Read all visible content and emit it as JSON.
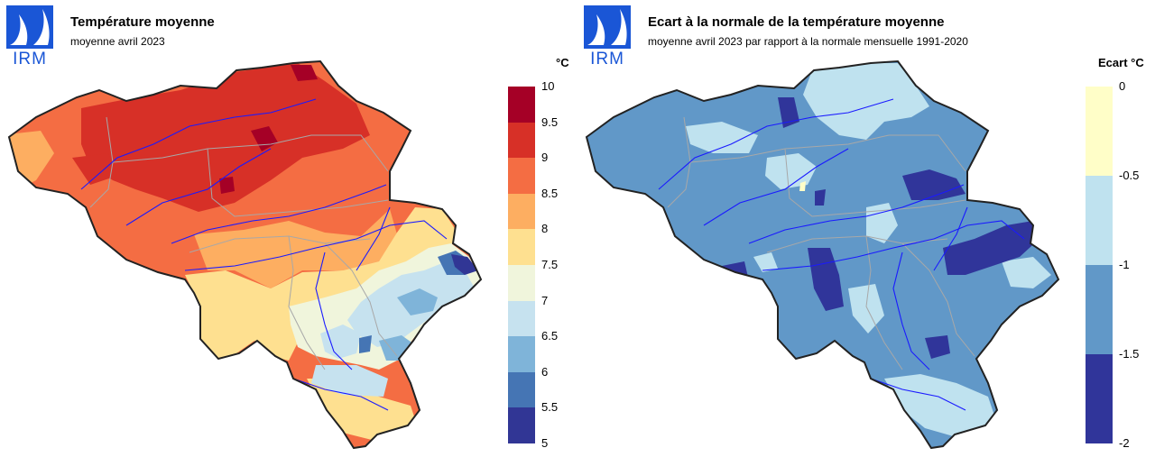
{
  "left_panel": {
    "logo_text": "IRM",
    "title": "Température moyenne",
    "subtitle": "moyenne avril 2023",
    "unit": "°C",
    "legend_ticks": [
      "10",
      "9.5",
      "9",
      "8.5",
      "8",
      "7.5",
      "7",
      "6.5",
      "6",
      "5.5",
      "5"
    ],
    "legend_colors": [
      "#a50026",
      "#d73027",
      "#f46d43",
      "#fdae61",
      "#fee090",
      "#f0f5dc",
      "#c6e2ef",
      "#7fb4d9",
      "#4575b4",
      "#313695"
    ],
    "map_colors": {
      "background": "#f46d43",
      "hot": "#d73027",
      "hottest": "#a50026",
      "warm": "#fdae61",
      "mild": "#fee090",
      "neutral": "#f0f5dc",
      "cool": "#c6e2ef",
      "cold": "#7fb4d9",
      "colder": "#4575b4",
      "coldest": "#313695"
    }
  },
  "right_panel": {
    "logo_text": "IRM",
    "title": "Ecart à la normale de la température moyenne",
    "subtitle": "moyenne avril 2023 par rapport à la normale mensuelle 1991-2020",
    "unit": "Ecart °C",
    "legend_ticks": [
      "0",
      "-0.5",
      "-1",
      "-1.5",
      "-2"
    ],
    "legend_colors": [
      "#fffec8",
      "#bfe2ef",
      "#6198c8",
      "#30359a"
    ],
    "map_colors": {
      "background": "#6198c8",
      "light": "#bfe2ef",
      "dark": "#30359a",
      "warmest": "#fffec8"
    }
  },
  "map_features": {
    "border_color": "#222222",
    "river_color": "#1a1aff",
    "province_border_color": "#a8a8a8"
  }
}
